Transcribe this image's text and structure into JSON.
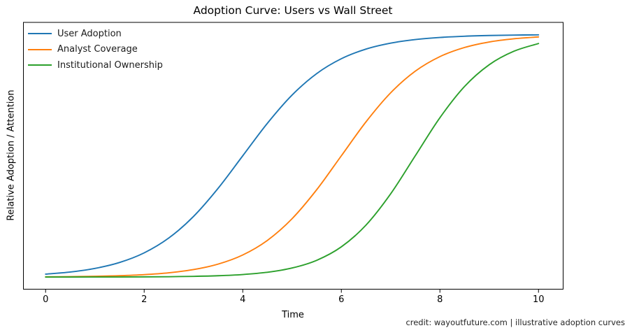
{
  "chart_data": {
    "type": "line",
    "title": "Adoption Curve: Users vs Wall Street",
    "xlabel": "Time",
    "ylabel": "Relative Adoption / Attention",
    "annotation": "credit: wayoutfuture.com | illustrative adoption curves",
    "xlim": [
      -0.45,
      10.5
    ],
    "ylim": [
      -0.05,
      1.05
    ],
    "x_ticks": [
      0,
      2,
      4,
      6,
      8,
      10
    ],
    "y_ticks": [],
    "grid": false,
    "legend_position": "upper-left",
    "axis_color": "#000000",
    "x": [
      0,
      0.5,
      1,
      1.5,
      2,
      2.5,
      3,
      3.5,
      4,
      4.5,
      5,
      5.5,
      6,
      6.5,
      7,
      7.5,
      8,
      8.5,
      9,
      9.5,
      10
    ],
    "series": [
      {
        "name": "User Adoption",
        "color": "#1f77b4",
        "values": [
          0.0121,
          0.0208,
          0.0356,
          0.0601,
          0.0998,
          0.1611,
          0.2497,
          0.3659,
          0.5,
          0.6341,
          0.7503,
          0.8389,
          0.9002,
          0.9399,
          0.9644,
          0.9792,
          0.9879,
          0.993,
          0.9959,
          0.9977,
          0.9986
        ]
      },
      {
        "name": "Analyst Coverage",
        "color": "#ff7f0e",
        "values": [
          0.001,
          0.0018,
          0.0032,
          0.0056,
          0.01,
          0.0176,
          0.0308,
          0.0534,
          0.0911,
          0.1512,
          0.2405,
          0.3601,
          0.5,
          0.6399,
          0.7595,
          0.8488,
          0.9089,
          0.9466,
          0.9692,
          0.9824,
          0.99
        ]
      },
      {
        "name": "Institutional Ownership",
        "color": "#2ca02c",
        "values": [
          0.0001,
          0.0001,
          0.0002,
          0.0004,
          0.0008,
          0.0015,
          0.0029,
          0.0055,
          0.0105,
          0.0198,
          0.0373,
          0.0691,
          0.1246,
          0.2142,
          0.343,
          0.5,
          0.657,
          0.7858,
          0.8754,
          0.9309,
          0.9627
        ]
      }
    ]
  }
}
